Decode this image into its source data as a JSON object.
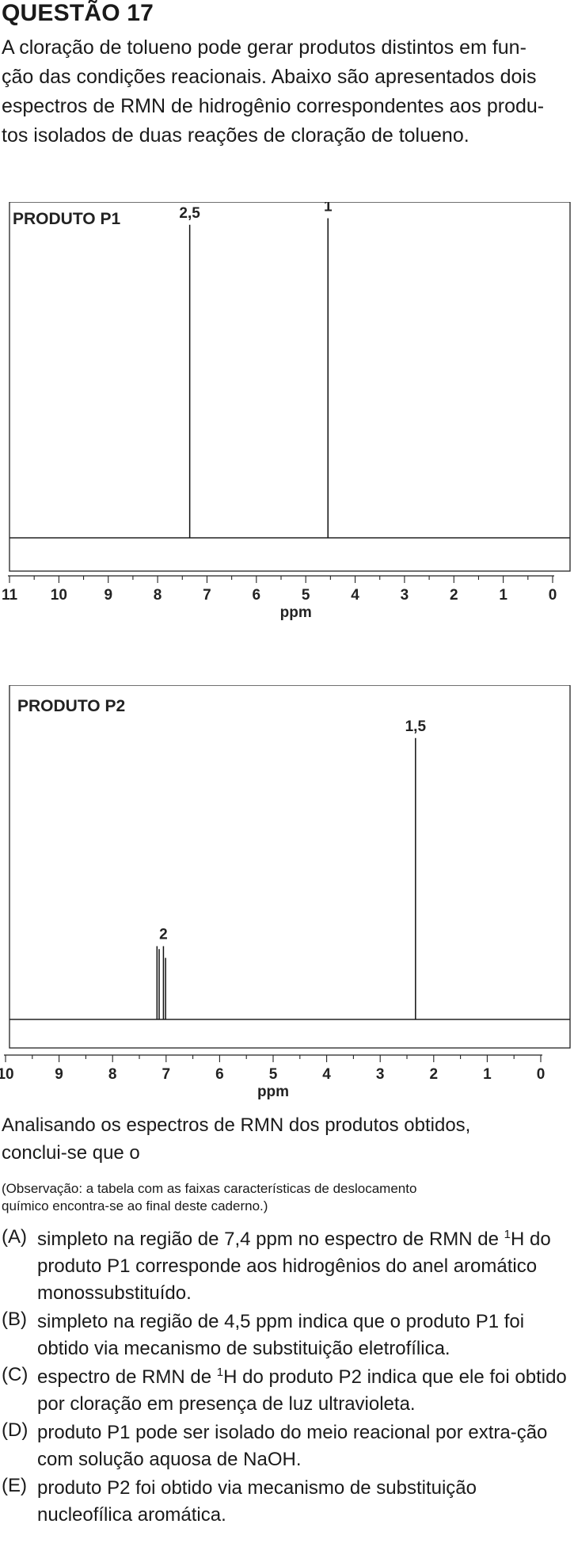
{
  "question": {
    "title": "QUESTÃO 17",
    "intro_lines": [
      "A cloração de tolueno pode gerar produtos distintos em fun-",
      "ção das condições reacionais. Abaixo são apresentados dois",
      "espectros de RMN de hidrogênio correspondentes aos produ-",
      "tos isolados de duas reações de cloração de tolueno."
    ]
  },
  "chart_data": [
    {
      "type": "line",
      "title": "PRODUTO P1",
      "xlabel": "ppm",
      "ylabel": "",
      "xlim": [
        11,
        0
      ],
      "x_ticks": [
        "11",
        "10",
        "9",
        "8",
        "7",
        "6",
        "5",
        "4",
        "3",
        "2",
        "1",
        "0"
      ],
      "peaks": [
        {
          "x": 7.35,
          "height": 0.95,
          "label": "2,5"
        },
        {
          "x": 4.55,
          "height": 0.97,
          "label": "1"
        }
      ],
      "grid": false
    },
    {
      "type": "line",
      "title": "PRODUTO P2",
      "xlabel": "ppm",
      "ylabel": "",
      "xlim": [
        10,
        0
      ],
      "x_ticks": [
        "10",
        "9",
        "8",
        "7",
        "6",
        "5",
        "4",
        "3",
        "2",
        "1",
        "0"
      ],
      "peaks": [
        {
          "x": 7.17,
          "height": 0.25,
          "label": ""
        },
        {
          "x": 7.13,
          "height": 0.24,
          "label": ""
        },
        {
          "x": 7.05,
          "height": 0.25,
          "label": "2"
        },
        {
          "x": 7.01,
          "height": 0.21,
          "label": ""
        },
        {
          "x": 2.34,
          "height": 0.96,
          "label": "1,5"
        }
      ],
      "grid": false
    }
  ],
  "analysis": {
    "line1": "Analisando os espectros de RMN dos produtos obtidos,",
    "line2": "conclui-se que o",
    "note_line1": "(Observação: a tabela com as faixas características de deslocamento",
    "note_line2": "químico encontra-se ao final deste caderno.)"
  },
  "options": [
    {
      "letter": "(A)",
      "pre": "simpleto na região de 7,4 ppm no espectro de RMN de",
      "sup": "1",
      "post": "H do produto P1 corresponde aos hidrogênios do anel aromático monossubstituído."
    },
    {
      "letter": "(B)",
      "text": "simpleto na região de 4,5 ppm indica que o produto P1 foi obtido via mecanismo de substituição eletrofílica."
    },
    {
      "letter": "(C)",
      "pre": "espectro de RMN de ",
      "sup": "1",
      "post": "H do produto P2 indica que ele foi obtido por cloração em presença de luz ultravioleta."
    },
    {
      "letter": "(D)",
      "text": "produto P1 pode ser isolado do meio reacional por extra-ção com solução aquosa de NaOH."
    },
    {
      "letter": "(E)",
      "text": "produto P2 foi obtido via mecanismo de substituição nucleofílica aromática."
    }
  ]
}
